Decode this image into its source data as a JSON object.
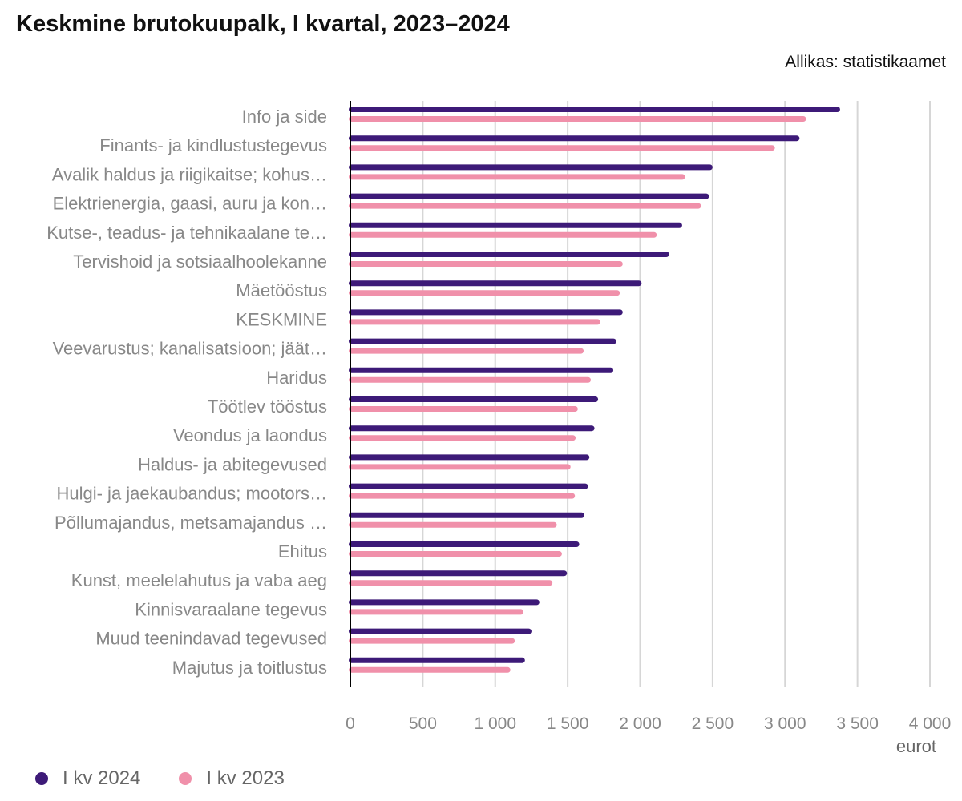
{
  "header": {
    "title": "Keskmine brutokuupalk, I kvartal, 2023–2024",
    "source": "Allikas: statistikaamet"
  },
  "chart_data": {
    "type": "bar",
    "orientation": "horizontal",
    "title": "Keskmine brutokuupalk, I kvartal, 2023–2024",
    "xlabel": "eurot",
    "ylabel": "",
    "xlim": [
      0,
      4000
    ],
    "x_ticks": [
      0,
      500,
      1000,
      1500,
      2000,
      2500,
      3000,
      3500,
      4000
    ],
    "x_tick_labels": [
      "0",
      "500",
      "1 000",
      "1 500",
      "2 000",
      "2 500",
      "3 000",
      "3 500",
      "4 000"
    ],
    "grid": "vertical",
    "legend_position": "bottom-left",
    "categories": [
      "Info ja side",
      "Finants- ja kindlustustegevus",
      "Avalik haldus ja riigikaitse; kohus…",
      "Elektrienergia, gaasi, auru ja kon…",
      "Kutse-, teadus- ja tehnikaalane te…",
      "Tervishoid ja sotsiaalhoolekanne",
      "Mäetööstus",
      "KESKMINE",
      "Veevarustus; kanalisatsioon; jäät…",
      "Haridus",
      "Töötlev tööstus",
      "Veondus ja laondus",
      "Haldus- ja abitegevused",
      "Hulgi- ja jaekaubandus; mootors…",
      "Põllumajandus, metsamajandus …",
      "Ehitus",
      "Kunst, meelelahutus ja vaba aeg",
      "Kinnisvaraalane tegevus",
      "Muud teenindavad tegevused",
      "Majutus ja toitlustus"
    ],
    "series": [
      {
        "name": "I kv 2024",
        "color": "#3d1a78",
        "values": [
          3380,
          3100,
          2500,
          2475,
          2290,
          2200,
          2010,
          1880,
          1835,
          1815,
          1710,
          1685,
          1650,
          1640,
          1615,
          1580,
          1495,
          1305,
          1250,
          1205
        ]
      },
      {
        "name": "I kv 2023",
        "color": "#f090aa",
        "values": [
          3145,
          2930,
          2310,
          2420,
          2115,
          1880,
          1860,
          1725,
          1610,
          1660,
          1570,
          1555,
          1520,
          1550,
          1425,
          1460,
          1395,
          1195,
          1135,
          1105
        ]
      }
    ]
  },
  "legend": {
    "items": [
      {
        "label": "I kv 2024",
        "color": "#3d1a78"
      },
      {
        "label": "I kv 2023",
        "color": "#f090aa"
      }
    ]
  }
}
